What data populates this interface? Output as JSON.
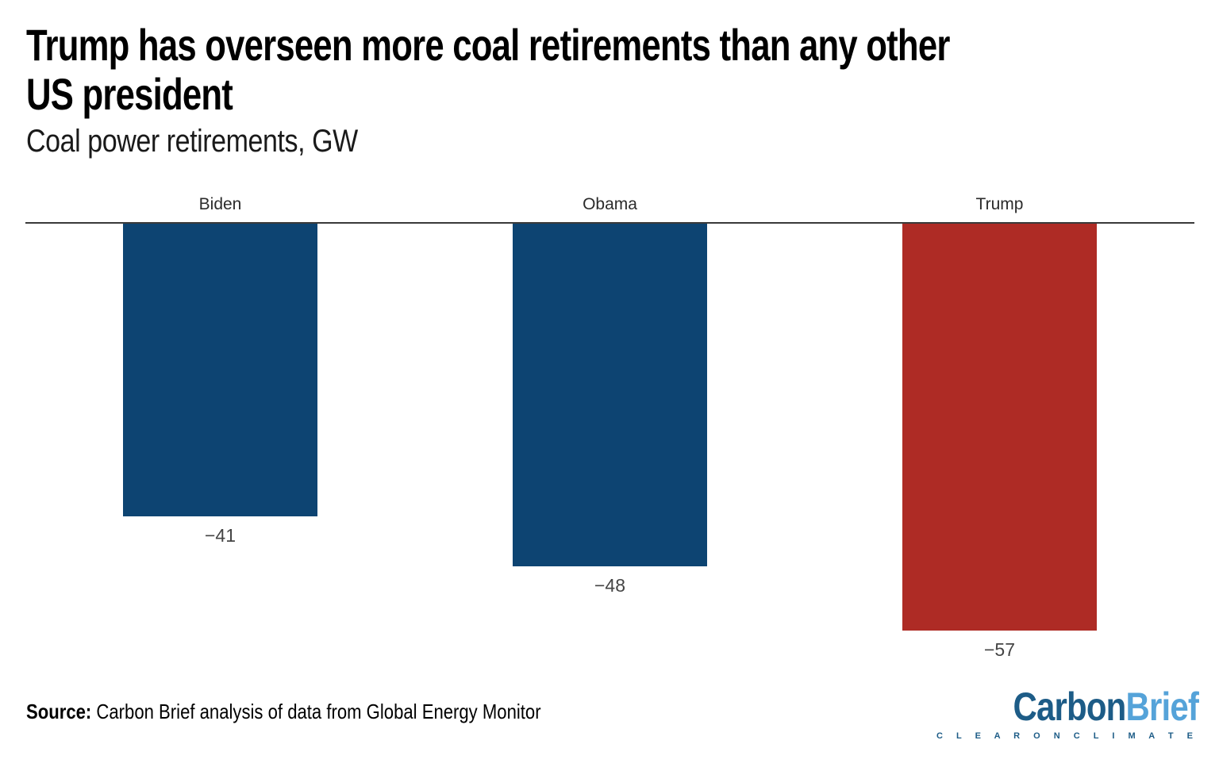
{
  "header": {
    "title": "Trump has overseen more coal retirements than any other US president",
    "title_lines": [
      "Trump has overseen more coal retirements than any other",
      "US president"
    ],
    "subtitle": "Coal power retirements, GW"
  },
  "chart_data": {
    "type": "bar",
    "title": "Trump has overseen more coal retirements than any other US president",
    "subtitle": "Coal power retirements, GW",
    "categories": [
      "Biden",
      "Obama",
      "Trump"
    ],
    "values": [
      -41,
      -48,
      -57
    ],
    "data_labels": [
      "−41",
      "−48",
      "−57"
    ],
    "bar_colors": [
      "#0d4472",
      "#0d4472",
      "#ae2b25"
    ],
    "xlabel": "",
    "ylabel": "Coal power retirements, GW",
    "ylim": [
      -60,
      0
    ],
    "baseline": 0,
    "grid": false,
    "legend": "none",
    "orientation": "vertical",
    "category_labels_position": "above-baseline",
    "value_labels_position": "below-bar-end"
  },
  "colors": {
    "bar_blue": "#0d4472",
    "bar_red": "#ae2b25",
    "axis_line": "#3a3a3a",
    "title_text": "#000000",
    "label_text": "#444444"
  },
  "footer": {
    "source_label": "Source:",
    "source_text": " Carbon Brief analysis of data from Global Energy Monitor",
    "logo": {
      "part1": "Carbon",
      "part2": "Brief",
      "tagline": "C L E A R   O N   C L I M A T E",
      "color_dark": "#1d5c87",
      "color_light": "#55a3d9"
    }
  }
}
